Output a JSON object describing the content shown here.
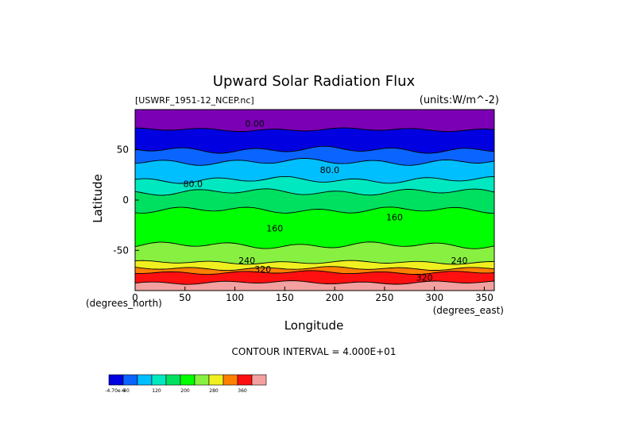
{
  "chart_data": {
    "type": "heatmap",
    "title": "Upward Solar Radiation Flux",
    "file_label": "[USWRF_1951-12_NCEP.nc]",
    "units_label": "(units:W/m^-2)",
    "xlabel": "Longitude",
    "ylabel": "Latitude",
    "x_unit_label": "(degrees_east)",
    "y_unit_label": "(degrees_north)",
    "xlim": [
      0,
      360
    ],
    "ylim": [
      -90,
      90
    ],
    "x_ticks": [
      0,
      50,
      100,
      150,
      200,
      250,
      300,
      350
    ],
    "y_ticks": [
      -50,
      0,
      50
    ],
    "contour_interval_text": "CONTOUR INTERVAL = 4.000E+01",
    "contour_labels": [
      {
        "text": "0.00",
        "lon": 120,
        "lat": 73
      },
      {
        "text": "80.0",
        "lon": 195,
        "lat": 27
      },
      {
        "text": "80.0",
        "lon": 58,
        "lat": 13
      },
      {
        "text": "160",
        "lon": 260,
        "lat": -20
      },
      {
        "text": "160",
        "lon": 140,
        "lat": -31
      },
      {
        "text": "240",
        "lon": 112,
        "lat": -63
      },
      {
        "text": "240",
        "lon": 325,
        "lat": -63
      },
      {
        "text": "320",
        "lon": 128,
        "lat": -72
      },
      {
        "text": "320",
        "lon": 290,
        "lat": -80
      }
    ],
    "bands": [
      {
        "lat_max": 90,
        "lat_min": 70,
        "color": "#7b00b5"
      },
      {
        "lat_max": 70,
        "lat_min": 50,
        "color": "#0000e0"
      },
      {
        "lat_max": 50,
        "lat_min": 38,
        "color": "#0a64ff"
      },
      {
        "lat_max": 38,
        "lat_min": 20,
        "color": "#00bfff"
      },
      {
        "lat_max": 20,
        "lat_min": 8,
        "color": "#00e8c0"
      },
      {
        "lat_max": 8,
        "lat_min": -10,
        "color": "#00e060"
      },
      {
        "lat_max": -10,
        "lat_min": -45,
        "color": "#00ff00"
      },
      {
        "lat_max": -45,
        "lat_min": -62,
        "color": "#88f040"
      },
      {
        "lat_max": -62,
        "lat_min": -68,
        "color": "#f0f020"
      },
      {
        "lat_max": -68,
        "lat_min": -72,
        "color": "#ff8000"
      },
      {
        "lat_max": -72,
        "lat_min": -82,
        "color": "#ff1010"
      },
      {
        "lat_max": -82,
        "lat_min": -90,
        "color": "#f2a0a0"
      }
    ],
    "colorbar": {
      "colors": [
        "#0000e0",
        "#0a64ff",
        "#00bfff",
        "#00e8c0",
        "#00e060",
        "#00ff00",
        "#88f040",
        "#f0f020",
        "#ff8000",
        "#ff1010",
        "#f2a0a0"
      ],
      "tick_labels": [
        "-4.70e-6",
        "40",
        "120",
        "200",
        "280",
        "360"
      ]
    }
  }
}
